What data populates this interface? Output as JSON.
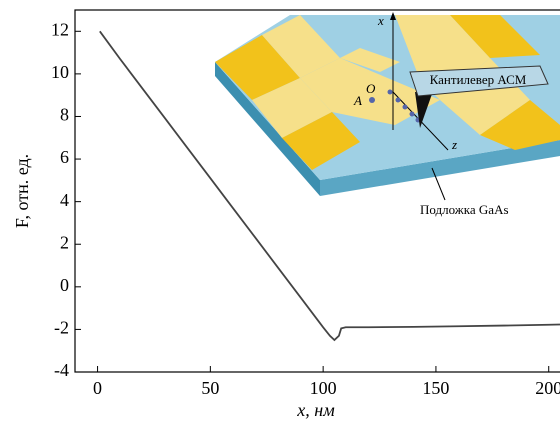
{
  "chart_data": {
    "type": "line",
    "x_label": "x, нм",
    "y_label": "F, отн. ед.",
    "x": [
      1,
      10,
      20,
      30,
      40,
      50,
      60,
      70,
      80,
      90,
      100,
      103,
      105,
      107,
      108,
      110,
      120,
      140,
      160,
      180,
      200,
      205
    ],
    "series": [
      {
        "color": "#444444",
        "values": [
          12,
          10.7,
          9.3,
          7.9,
          6.5,
          5.1,
          3.7,
          2.3,
          0.9,
          -0.5,
          -1.9,
          -2.3,
          -2.5,
          -2.3,
          -1.95,
          -1.9,
          -1.9,
          -1.88,
          -1.85,
          -1.82,
          -1.78,
          -1.77
        ]
      }
    ],
    "xlim": [
      -10,
      205
    ],
    "ylim": [
      -4,
      13
    ],
    "xticks": [
      0,
      50,
      100,
      150,
      200
    ],
    "yticks": [
      -4,
      -2,
      0,
      2,
      4,
      6,
      8,
      10,
      12
    ],
    "grid": false
  },
  "inset": {
    "axis_x": "x",
    "origin": "O",
    "point": "A",
    "axis_z": "z",
    "cantilever": "Кантилевер АСМ",
    "substrate": "Подложка GaAs"
  }
}
